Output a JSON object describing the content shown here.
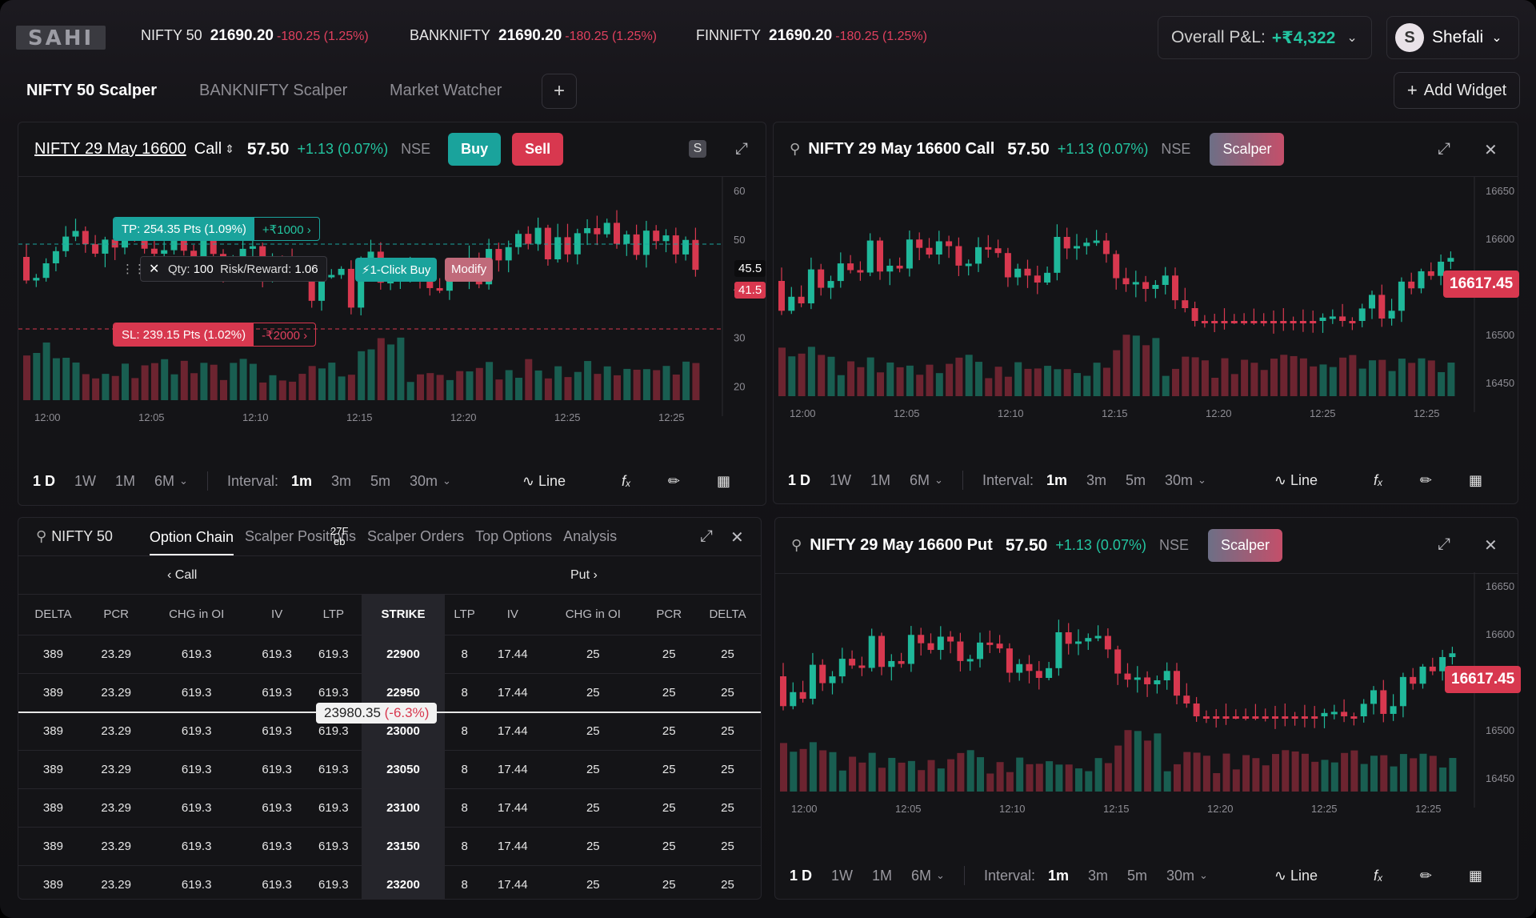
{
  "header": {
    "logo_text": "SAHI",
    "tickers": [
      {
        "name": "NIFTY 50",
        "price": "21690.20",
        "change": "-180.25 (1.25%)"
      },
      {
        "name": "BANKNIFTY",
        "price": "21690.20",
        "change": "-180.25 (1.25%)"
      },
      {
        "name": "FINNIFTY",
        "price": "21690.20",
        "change": "-180.25 (1.25%)"
      }
    ],
    "pnl_label": "Overall P&L:",
    "pnl_value": "+₹4,322",
    "user_initial": "S",
    "user_name": "Shefali"
  },
  "workspace_tabs": [
    "NIFTY 50 Scalper",
    "BANKNIFTY Scalper",
    "Market Watcher"
  ],
  "add_widget_label": "Add Widget",
  "panel_left_chart": {
    "symbol_underlined": "NIFTY 29 May 16600",
    "symbol_type": "Call",
    "price": "57.50",
    "change": "+1.13 (0.07%)",
    "exchange": "NSE",
    "buy_label": "Buy",
    "sell_label": "Sell",
    "s_badge": "S",
    "tp_label": "TP: 254.35 Pts (1.09%)",
    "tp_amount": "+₹1000",
    "sl_label": "SL: 239.15 Pts (1.02%)",
    "sl_amount": "-₹2000",
    "qty_label": "Qty:",
    "qty_value": "100",
    "rr_label": "Risk/Reward:",
    "rr_value": "1.06",
    "one_click_label": "1-Click Buy",
    "modify_label": "Modify",
    "price_label_green": "45.5",
    "price_label_red": "41.5",
    "y_ticks": [
      "60",
      "50",
      "40",
      "30",
      "20"
    ],
    "x_ticks": [
      "12:00",
      "12:05",
      "12:10",
      "12:15",
      "12:20",
      "12:25",
      "12:25"
    ]
  },
  "panel_right_top": {
    "symbol": "NIFTY 29 May 16600 Call",
    "price": "57.50",
    "change": "+1.13 (0.07%)",
    "exchange": "NSE",
    "scalper_label": "Scalper",
    "last_price": "16617.45",
    "y_ticks": [
      "16650",
      "16600",
      "16550",
      "16500",
      "16450"
    ],
    "x_ticks": [
      "12:00",
      "12:05",
      "12:10",
      "12:15",
      "12:20",
      "12:25",
      "12:25"
    ]
  },
  "panel_right_bottom": {
    "symbol": "NIFTY 29 May 16600 Put",
    "price": "57.50",
    "change": "+1.13 (0.07%)",
    "exchange": "NSE",
    "scalper_label": "Scalper",
    "last_price": "16617.45",
    "y_ticks": [
      "16650",
      "16600",
      "16550",
      "16500",
      "16450"
    ],
    "x_ticks": [
      "12:00",
      "12:05",
      "12:10",
      "12:15",
      "12:20",
      "12:25",
      "12:25"
    ]
  },
  "chart_footer": {
    "ranges": [
      "1 D",
      "1W",
      "1M",
      "6M"
    ],
    "interval_label": "Interval:",
    "intervals": [
      "1m",
      "3m",
      "5m",
      "30m"
    ],
    "line_label": "Line"
  },
  "option_chain": {
    "search_label": "NIFTY 50",
    "tabs": [
      "Option Chain",
      "Scalper Positions",
      "Scalper Orders",
      "Top Options",
      "Analysis"
    ],
    "expiry_tag_top": "27F",
    "expiry_tag_bottom": "eb",
    "call_label": "Call",
    "put_label": "Put",
    "columns": [
      "DELTA",
      "PCR",
      "CHG in OI",
      "IV",
      "LTP",
      "STRIKE",
      "LTP",
      "IV",
      "CHG in OI",
      "PCR",
      "DELTA"
    ],
    "rows": [
      [
        "389",
        "23.29",
        "619.3",
        "619.3",
        "619.3",
        "22900",
        "8",
        "17.44",
        "25",
        "25",
        "25"
      ],
      [
        "389",
        "23.29",
        "619.3",
        "619.3",
        "619.3",
        "22950",
        "8",
        "17.44",
        "25",
        "25",
        "25"
      ],
      [
        "389",
        "23.29",
        "619.3",
        "619.3",
        "619.3",
        "23000",
        "8",
        "17.44",
        "25",
        "25",
        "25"
      ],
      [
        "389",
        "23.29",
        "619.3",
        "619.3",
        "619.3",
        "23050",
        "8",
        "17.44",
        "25",
        "25",
        "25"
      ],
      [
        "389",
        "23.29",
        "619.3",
        "619.3",
        "619.3",
        "23100",
        "8",
        "17.44",
        "25",
        "25",
        "25"
      ],
      [
        "389",
        "23.29",
        "619.3",
        "619.3",
        "619.3",
        "23150",
        "8",
        "17.44",
        "25",
        "25",
        "25"
      ],
      [
        "389",
        "23.29",
        "619.3",
        "619.3",
        "619.3",
        "23200",
        "8",
        "17.44",
        "25",
        "25",
        "25"
      ]
    ],
    "spot_price": "23980.35",
    "spot_change": "(-6.3%)"
  },
  "colors": {
    "up": "#1fb89a",
    "down": "#d8384f",
    "bg": "#141417"
  }
}
